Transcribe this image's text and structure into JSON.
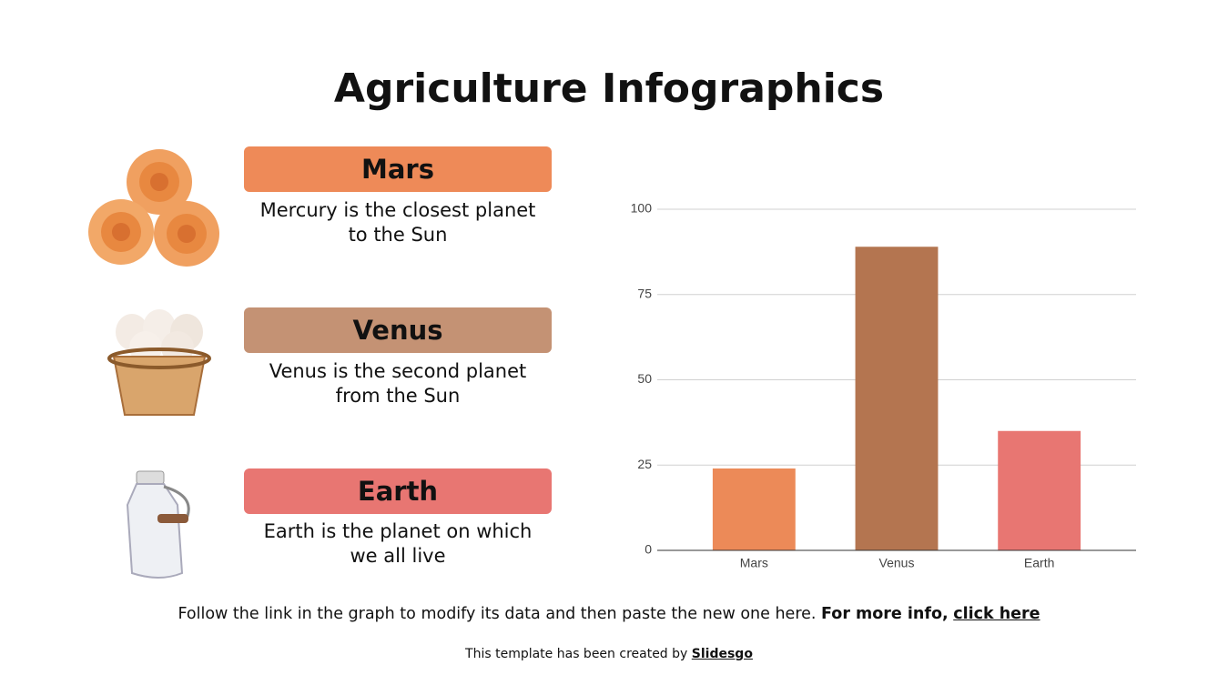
{
  "title": "Agriculture Infographics",
  "items": [
    {
      "label": "Mars",
      "text": "Mercury is the closest planet to the Sun",
      "color": "#ee8a58"
    },
    {
      "label": "Venus",
      "text": "Venus is the second planet from the Sun",
      "color": "#c49274"
    },
    {
      "label": "Earth",
      "text": "Earth is the planet on which we all live",
      "color": "#e87672"
    }
  ],
  "footer": {
    "text": "Follow the link in the graph to modify its data and then paste the new one here.",
    "bold": "For more info,",
    "link": "click here"
  },
  "credit": {
    "text": "This template has been created by",
    "link": "Slidesgo"
  },
  "chart_data": {
    "type": "bar",
    "categories": [
      "Mars",
      "Venus",
      "Earth"
    ],
    "values": [
      24,
      89,
      35
    ],
    "colors": [
      "#ec8a58",
      "#b47550",
      "#e87672"
    ],
    "ylim": [
      0,
      100
    ],
    "yticks": [
      0,
      25,
      50,
      75,
      100
    ],
    "grid": true
  }
}
